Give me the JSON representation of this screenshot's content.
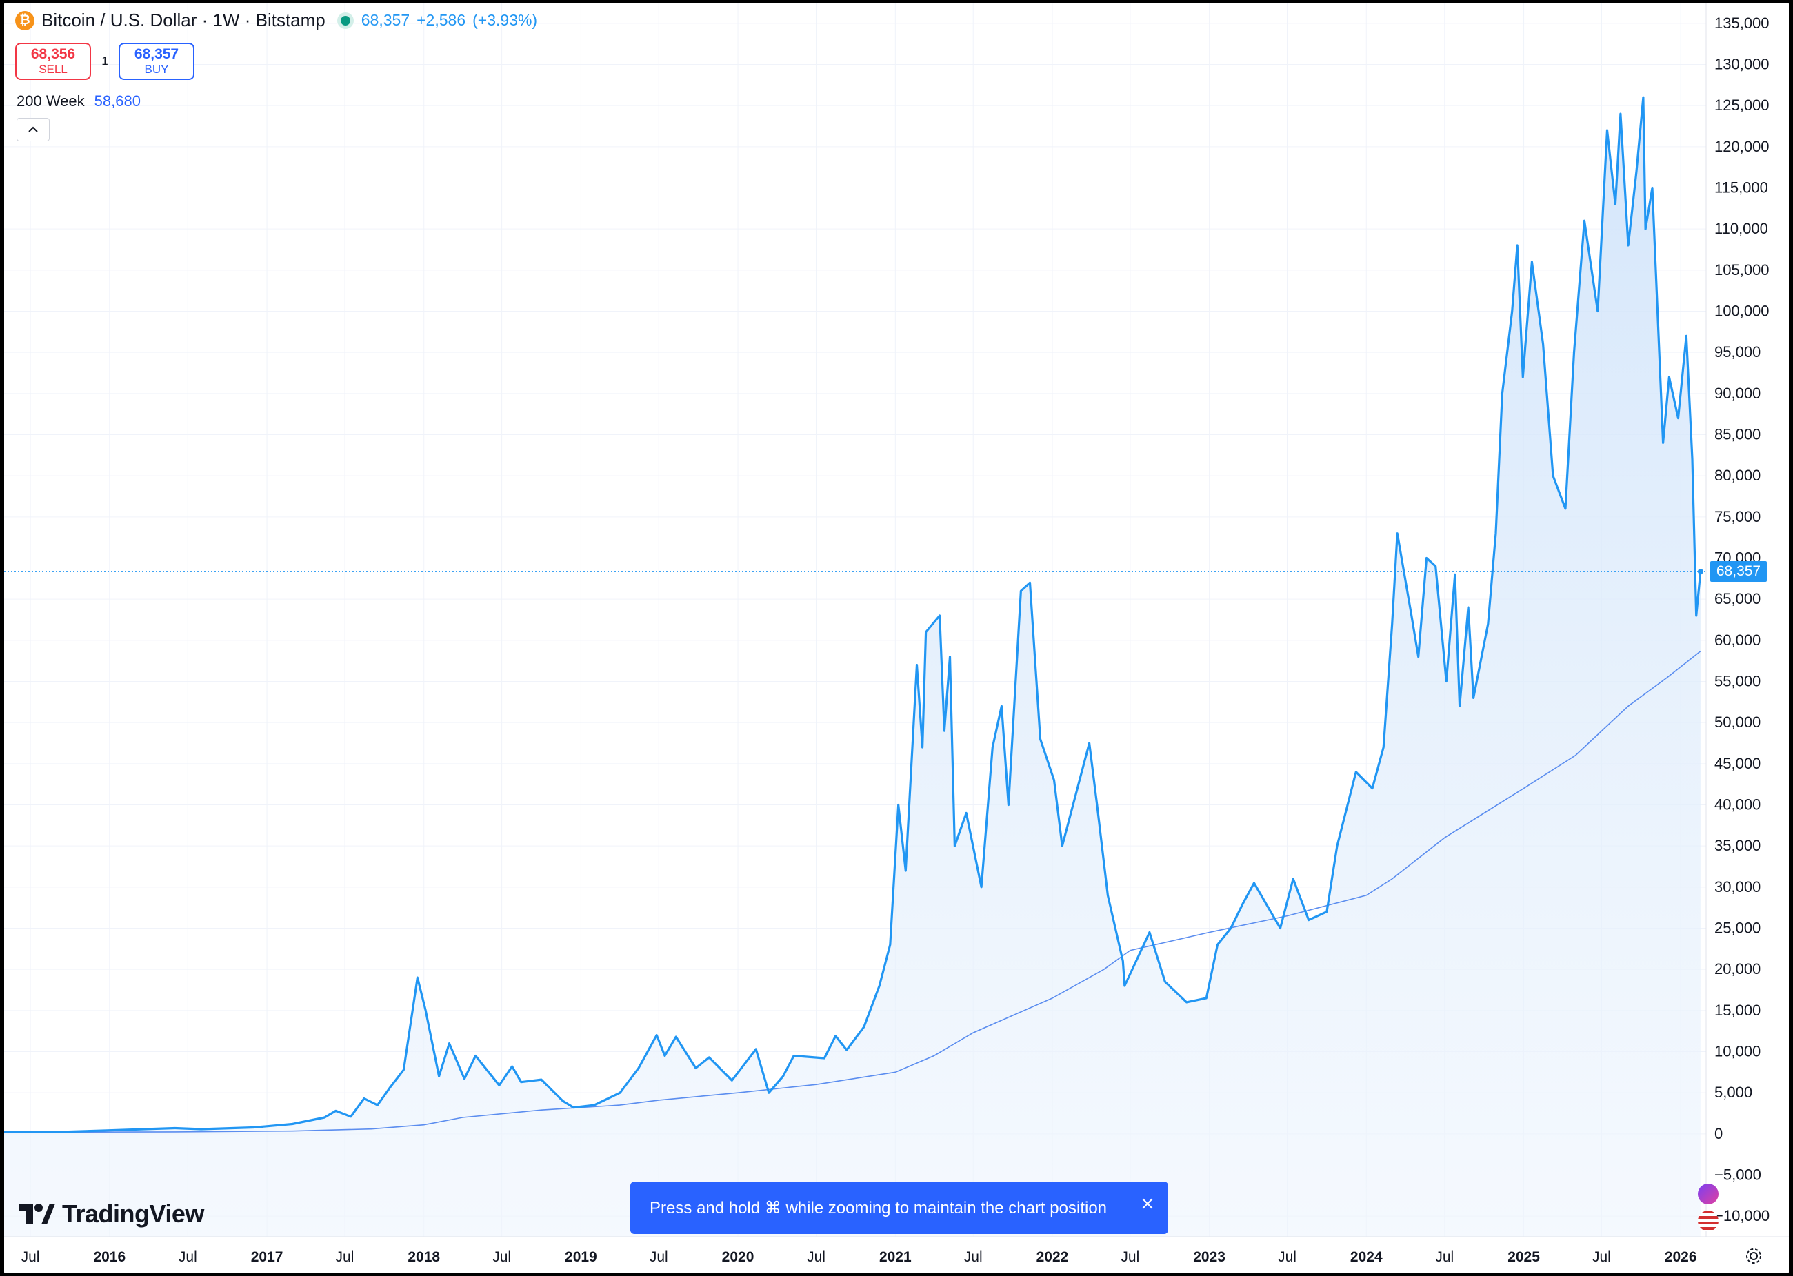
{
  "legend": {
    "symbol_title": "Bitcoin / U.S. Dollar · 1W · Bitstamp",
    "coin_icon": "bitcoin-icon",
    "last": "68,357",
    "change": "+2,586",
    "change_pct": "(+3.93%)"
  },
  "trade": {
    "sell_price": "68,356",
    "sell_label": "SELL",
    "spread": "1",
    "buy_price": "68,357",
    "buy_label": "BUY"
  },
  "indicator": {
    "name": "200 Week",
    "value": "58,680"
  },
  "collapse_icon": "chevron-up-icon",
  "price_tag": "68,357",
  "toast": {
    "text": "Press and hold ⌘ while zooming to maintain the chart position",
    "close_icon": "close-icon"
  },
  "branding": {
    "name": "TradingView"
  },
  "settings_icon": "gear-icon",
  "colors": {
    "line": "#2196f3",
    "ma": "#5b8def",
    "fill": "#e3effc",
    "sell": "#f23645",
    "buy": "#2962ff",
    "toast": "#2962ff",
    "live_dot": "#089981",
    "coin": "#f7931a"
  },
  "chart_data": {
    "type": "area",
    "title": "Bitcoin / U.S. Dollar · 1W · Bitstamp",
    "xlabel": "",
    "ylabel": "",
    "ylim": [
      -12500,
      137500
    ],
    "y_ticks": [
      135000,
      130000,
      125000,
      120000,
      115000,
      110000,
      105000,
      100000,
      95000,
      90000,
      85000,
      80000,
      75000,
      70000,
      65000,
      60000,
      55000,
      50000,
      45000,
      40000,
      35000,
      30000,
      25000,
      20000,
      15000,
      10000,
      5000,
      0,
      -5000,
      -10000
    ],
    "y_tick_labels": [
      "135,000",
      "130,000",
      "125,000",
      "120,000",
      "115,000",
      "110,000",
      "105,000",
      "100,000",
      "95,000",
      "90,000",
      "85,000",
      "80,000",
      "75,000",
      "70,000",
      "65,000",
      "60,000",
      "55,000",
      "50,000",
      "45,000",
      "40,000",
      "35,000",
      "30,000",
      "25,000",
      "20,000",
      "15,000",
      "10,000",
      "5,000",
      "0",
      "−5,000",
      "−10,000"
    ],
    "x_range": [
      "2015-05-01",
      "2026-03-01"
    ],
    "x_ticks": [
      {
        "label": "Jul",
        "x": "2015-07-01",
        "year": false
      },
      {
        "label": "2016",
        "x": "2016-01-01",
        "year": true
      },
      {
        "label": "Jul",
        "x": "2016-07-01",
        "year": false
      },
      {
        "label": "2017",
        "x": "2017-01-01",
        "year": true
      },
      {
        "label": "Jul",
        "x": "2017-07-01",
        "year": false
      },
      {
        "label": "2018",
        "x": "2018-01-01",
        "year": true
      },
      {
        "label": "Jul",
        "x": "2018-07-01",
        "year": false
      },
      {
        "label": "2019",
        "x": "2019-01-01",
        "year": true
      },
      {
        "label": "Jul",
        "x": "2019-07-01",
        "year": false
      },
      {
        "label": "2020",
        "x": "2020-01-01",
        "year": true
      },
      {
        "label": "Jul",
        "x": "2020-07-01",
        "year": false
      },
      {
        "label": "2021",
        "x": "2021-01-01",
        "year": true
      },
      {
        "label": "Jul",
        "x": "2021-07-01",
        "year": false
      },
      {
        "label": "2022",
        "x": "2022-01-01",
        "year": true
      },
      {
        "label": "Jul",
        "x": "2022-07-01",
        "year": false
      },
      {
        "label": "2023",
        "x": "2023-01-01",
        "year": true
      },
      {
        "label": "Jul",
        "x": "2023-07-01",
        "year": false
      },
      {
        "label": "2024",
        "x": "2024-01-01",
        "year": true
      },
      {
        "label": "Jul",
        "x": "2024-07-01",
        "year": false
      },
      {
        "label": "2025",
        "x": "2025-01-01",
        "year": true
      },
      {
        "label": "Jul",
        "x": "2025-07-01",
        "year": false
      },
      {
        "label": "2026",
        "x": "2026-01-01",
        "year": true
      }
    ],
    "last_price": 68357,
    "series": [
      {
        "name": "",
        "role": "price",
        "points": [
          [
            "2015-05-01",
            240
          ],
          [
            "2015-09-01",
            230
          ],
          [
            "2016-01-01",
            430
          ],
          [
            "2016-06-01",
            700
          ],
          [
            "2016-08-01",
            570
          ],
          [
            "2016-12-01",
            780
          ],
          [
            "2017-03-01",
            1200
          ],
          [
            "2017-05-15",
            2000
          ],
          [
            "2017-06-10",
            2800
          ],
          [
            "2017-07-15",
            2100
          ],
          [
            "2017-08-15",
            4300
          ],
          [
            "2017-09-15",
            3500
          ],
          [
            "2017-10-15",
            5700
          ],
          [
            "2017-11-15",
            7800
          ],
          [
            "2017-12-17",
            19000
          ],
          [
            "2018-01-05",
            15000
          ],
          [
            "2018-02-05",
            7000
          ],
          [
            "2018-03-01",
            11000
          ],
          [
            "2018-04-05",
            6700
          ],
          [
            "2018-05-01",
            9500
          ],
          [
            "2018-06-25",
            5900
          ],
          [
            "2018-07-25",
            8200
          ],
          [
            "2018-08-15",
            6300
          ],
          [
            "2018-10-01",
            6600
          ],
          [
            "2018-11-20",
            4000
          ],
          [
            "2018-12-15",
            3200
          ],
          [
            "2019-02-01",
            3500
          ],
          [
            "2019-04-02",
            5000
          ],
          [
            "2019-05-15",
            8000
          ],
          [
            "2019-06-26",
            12000
          ],
          [
            "2019-07-15",
            9500
          ],
          [
            "2019-08-10",
            11800
          ],
          [
            "2019-09-25",
            8000
          ],
          [
            "2019-10-26",
            9300
          ],
          [
            "2019-12-18",
            6500
          ],
          [
            "2020-02-12",
            10300
          ],
          [
            "2020-03-13",
            5000
          ],
          [
            "2020-04-15",
            7000
          ],
          [
            "2020-05-10",
            9500
          ],
          [
            "2020-07-20",
            9200
          ],
          [
            "2020-08-15",
            11900
          ],
          [
            "2020-09-10",
            10200
          ],
          [
            "2020-10-20",
            13000
          ],
          [
            "2020-11-25",
            18000
          ],
          [
            "2020-12-20",
            23000
          ],
          [
            "2021-01-08",
            40000
          ],
          [
            "2021-01-25",
            32000
          ],
          [
            "2021-02-20",
            57000
          ],
          [
            "2021-03-05",
            47000
          ],
          [
            "2021-03-13",
            61000
          ],
          [
            "2021-04-14",
            63000
          ],
          [
            "2021-04-25",
            49000
          ],
          [
            "2021-05-08",
            58000
          ],
          [
            "2021-05-19",
            35000
          ],
          [
            "2021-06-15",
            39000
          ],
          [
            "2021-07-20",
            30000
          ],
          [
            "2021-08-15",
            47000
          ],
          [
            "2021-09-05",
            52000
          ],
          [
            "2021-09-21",
            40000
          ],
          [
            "2021-10-20",
            66000
          ],
          [
            "2021-11-10",
            67000
          ],
          [
            "2021-12-04",
            48000
          ],
          [
            "2022-01-05",
            43000
          ],
          [
            "2022-01-24",
            35000
          ],
          [
            "2022-03-28",
            47500
          ],
          [
            "2022-04-15",
            40000
          ],
          [
            "2022-05-10",
            29000
          ],
          [
            "2022-06-14",
            21000
          ],
          [
            "2022-06-18",
            18000
          ],
          [
            "2022-08-15",
            24500
          ],
          [
            "2022-09-20",
            18500
          ],
          [
            "2022-11-09",
            16000
          ],
          [
            "2022-12-25",
            16500
          ],
          [
            "2023-01-20",
            23000
          ],
          [
            "2023-02-20",
            25000
          ],
          [
            "2023-03-20",
            28000
          ],
          [
            "2023-04-15",
            30500
          ],
          [
            "2023-06-15",
            25000
          ],
          [
            "2023-07-15",
            31000
          ],
          [
            "2023-08-20",
            26000
          ],
          [
            "2023-10-01",
            27000
          ],
          [
            "2023-10-25",
            35000
          ],
          [
            "2023-12-08",
            44000
          ],
          [
            "2024-01-15",
            42000
          ],
          [
            "2024-02-10",
            47000
          ],
          [
            "2024-03-01",
            62000
          ],
          [
            "2024-03-13",
            73000
          ],
          [
            "2024-04-15",
            63000
          ],
          [
            "2024-05-01",
            58000
          ],
          [
            "2024-05-20",
            70000
          ],
          [
            "2024-06-10",
            69000
          ],
          [
            "2024-07-05",
            55000
          ],
          [
            "2024-07-25",
            68000
          ],
          [
            "2024-08-05",
            52000
          ],
          [
            "2024-08-25",
            64000
          ],
          [
            "2024-09-06",
            53000
          ],
          [
            "2024-10-10",
            62000
          ],
          [
            "2024-10-28",
            73000
          ],
          [
            "2024-11-12",
            90000
          ],
          [
            "2024-12-05",
            100000
          ],
          [
            "2024-12-17",
            108000
          ],
          [
            "2024-12-30",
            92000
          ],
          [
            "2025-01-20",
            106000
          ],
          [
            "2025-02-15",
            96000
          ],
          [
            "2025-03-10",
            80000
          ],
          [
            "2025-04-08",
            76000
          ],
          [
            "2025-04-28",
            95000
          ],
          [
            "2025-05-22",
            111000
          ],
          [
            "2025-06-22",
            100000
          ],
          [
            "2025-07-14",
            122000
          ],
          [
            "2025-08-02",
            113000
          ],
          [
            "2025-08-14",
            124000
          ],
          [
            "2025-09-01",
            108000
          ],
          [
            "2025-09-20",
            117000
          ],
          [
            "2025-10-06",
            126000
          ],
          [
            "2025-10-11",
            110000
          ],
          [
            "2025-10-27",
            115000
          ],
          [
            "2025-11-21",
            84000
          ],
          [
            "2025-12-05",
            92000
          ],
          [
            "2025-12-26",
            87000
          ],
          [
            "2026-01-14",
            97000
          ],
          [
            "2026-01-28",
            82000
          ],
          [
            "2026-02-06",
            63000
          ],
          [
            "2026-02-16",
            68357
          ]
        ]
      },
      {
        "name": "200 Week",
        "role": "moving-average",
        "points": [
          [
            "2015-05-01",
            200
          ],
          [
            "2016-06-01",
            250
          ],
          [
            "2017-03-01",
            350
          ],
          [
            "2017-09-01",
            600
          ],
          [
            "2018-01-01",
            1100
          ],
          [
            "2018-04-01",
            2000
          ],
          [
            "2018-10-01",
            2900
          ],
          [
            "2019-04-01",
            3500
          ],
          [
            "2019-07-01",
            4100
          ],
          [
            "2020-01-01",
            5000
          ],
          [
            "2020-07-01",
            6000
          ],
          [
            "2021-01-01",
            7500
          ],
          [
            "2021-04-01",
            9500
          ],
          [
            "2021-07-01",
            12300
          ],
          [
            "2022-01-01",
            16500
          ],
          [
            "2022-05-01",
            20000
          ],
          [
            "2022-07-01",
            22300
          ],
          [
            "2023-01-01",
            24500
          ],
          [
            "2023-07-01",
            26500
          ],
          [
            "2024-01-01",
            29000
          ],
          [
            "2024-03-01",
            31000
          ],
          [
            "2024-07-01",
            36000
          ],
          [
            "2025-01-01",
            42000
          ],
          [
            "2025-05-01",
            46000
          ],
          [
            "2025-09-01",
            52000
          ],
          [
            "2025-12-01",
            55500
          ],
          [
            "2026-02-16",
            58680
          ]
        ]
      }
    ]
  }
}
